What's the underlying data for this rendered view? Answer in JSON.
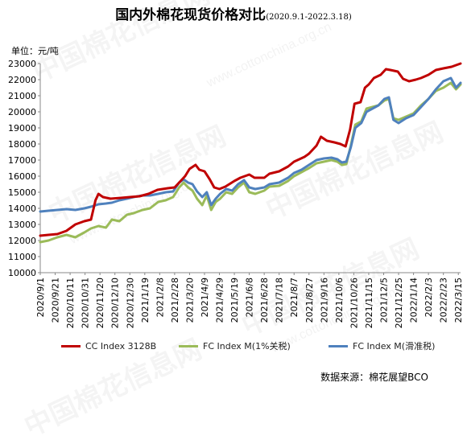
{
  "header": {
    "title": "国内外棉花现货价格对比",
    "subtitle": "(2020.9.1-2022.3.18)",
    "unit": "单位：元/吨"
  },
  "source": "数据来源：棉花展望BCO",
  "watermark": {
    "text": "中国棉花信息网",
    "url": "www.cottonchina.org.cn"
  },
  "colors": {
    "cc": "#c00000",
    "fc1": "#9bbb59",
    "fcs": "#4f81bd"
  },
  "chart_data": {
    "type": "line",
    "title": "国内外棉花现货价格对比",
    "subtitle": "(2020.9.1-2022.3.18)",
    "ylabel": "单位：元/吨",
    "ylim": [
      10000,
      23000
    ],
    "yticks": [
      10000,
      11000,
      12000,
      13000,
      14000,
      15000,
      16000,
      17000,
      18000,
      19000,
      20000,
      21000,
      22000,
      23000
    ],
    "xlim": [
      "2020-09-01",
      "2022-03-18"
    ],
    "categories": [
      "2020/9/1",
      "2020/9/21",
      "2020/10/11",
      "2020/10/31",
      "2020/11/20",
      "2020/12/10",
      "2020/12/30",
      "2021/1/19",
      "2021/2/8",
      "2021/2/28",
      "2021/3/20",
      "2021/4/9",
      "2021/4/29",
      "2021/5/19",
      "2021/6/8",
      "2021/6/28",
      "2021/7/18",
      "2021/8/7",
      "2021/8/27",
      "2021/9/16",
      "2021/10/6",
      "2021/10/26",
      "2021/11/15",
      "2021/12/5",
      "2021/12/25",
      "2022/1/14",
      "2022/2/3",
      "2022/2/23",
      "2022/3/15"
    ],
    "grid": false,
    "legend_position": "bottom",
    "series": [
      {
        "name": "CC Index 3128B",
        "color": "#c00000",
        "points": [
          [
            "2020-09-01",
            12300
          ],
          [
            "2020-09-12",
            12350
          ],
          [
            "2020-09-24",
            12400
          ],
          [
            "2020-10-06",
            12600
          ],
          [
            "2020-10-18",
            13000
          ],
          [
            "2020-10-30",
            13200
          ],
          [
            "2020-11-08",
            13300
          ],
          [
            "2020-11-14",
            14500
          ],
          [
            "2020-11-18",
            14900
          ],
          [
            "2020-11-24",
            14700
          ],
          [
            "2020-12-04",
            14600
          ],
          [
            "2020-12-18",
            14650
          ],
          [
            "2020-12-30",
            14700
          ],
          [
            "2021-01-12",
            14750
          ],
          [
            "2021-01-24",
            14900
          ],
          [
            "2021-02-05",
            15150
          ],
          [
            "2021-02-19",
            15250
          ],
          [
            "2021-02-28",
            15300
          ],
          [
            "2021-03-06",
            15600
          ],
          [
            "2021-03-14",
            16000
          ],
          [
            "2021-03-20",
            16450
          ],
          [
            "2021-03-28",
            16700
          ],
          [
            "2021-04-02",
            16400
          ],
          [
            "2021-04-09",
            16300
          ],
          [
            "2021-04-16",
            15800
          ],
          [
            "2021-04-22",
            15300
          ],
          [
            "2021-04-29",
            15200
          ],
          [
            "2021-05-07",
            15350
          ],
          [
            "2021-05-19",
            15700
          ],
          [
            "2021-05-27",
            15900
          ],
          [
            "2021-06-08",
            16100
          ],
          [
            "2021-06-15",
            15900
          ],
          [
            "2021-06-28",
            15900
          ],
          [
            "2021-07-05",
            16150
          ],
          [
            "2021-07-18",
            16300
          ],
          [
            "2021-07-30",
            16600
          ],
          [
            "2021-08-07",
            16900
          ],
          [
            "2021-08-21",
            17200
          ],
          [
            "2021-08-27",
            17400
          ],
          [
            "2021-09-06",
            17900
          ],
          [
            "2021-09-12",
            18450
          ],
          [
            "2021-09-20",
            18200
          ],
          [
            "2021-09-30",
            18100
          ],
          [
            "2021-10-08",
            18000
          ],
          [
            "2021-10-15",
            17850
          ],
          [
            "2021-10-21",
            18900
          ],
          [
            "2021-10-27",
            20500
          ],
          [
            "2021-11-04",
            20600
          ],
          [
            "2021-11-10",
            21500
          ],
          [
            "2021-11-15",
            21700
          ],
          [
            "2021-11-22",
            22100
          ],
          [
            "2021-12-01",
            22300
          ],
          [
            "2021-12-08",
            22650
          ],
          [
            "2021-12-14",
            22600
          ],
          [
            "2021-12-24",
            22500
          ],
          [
            "2021-12-31",
            22050
          ],
          [
            "2022-01-08",
            21900
          ],
          [
            "2022-01-17",
            22000
          ],
          [
            "2022-01-24",
            22100
          ],
          [
            "2022-02-03",
            22300
          ],
          [
            "2022-02-13",
            22600
          ],
          [
            "2022-02-23",
            22700
          ],
          [
            "2022-03-06",
            22800
          ],
          [
            "2022-03-12",
            22900
          ],
          [
            "2022-03-18",
            23000
          ]
        ]
      },
      {
        "name": "FC Index M(1%关税)",
        "color": "#9bbb59",
        "points": [
          [
            "2020-09-01",
            11900
          ],
          [
            "2020-09-12",
            12000
          ],
          [
            "2020-09-24",
            12200
          ],
          [
            "2020-10-06",
            12350
          ],
          [
            "2020-10-18",
            12200
          ],
          [
            "2020-10-30",
            12500
          ],
          [
            "2020-11-08",
            12750
          ],
          [
            "2020-11-18",
            12900
          ],
          [
            "2020-11-28",
            12800
          ],
          [
            "2020-12-06",
            13300
          ],
          [
            "2020-12-16",
            13200
          ],
          [
            "2020-12-26",
            13600
          ],
          [
            "2021-01-04",
            13700
          ],
          [
            "2021-01-16",
            13900
          ],
          [
            "2021-01-26",
            14000
          ],
          [
            "2021-02-06",
            14400
          ],
          [
            "2021-02-16",
            14500
          ],
          [
            "2021-02-26",
            14700
          ],
          [
            "2021-03-06",
            15300
          ],
          [
            "2021-03-12",
            15600
          ],
          [
            "2021-03-18",
            15300
          ],
          [
            "2021-03-24",
            15100
          ],
          [
            "2021-03-30",
            14600
          ],
          [
            "2021-04-06",
            14200
          ],
          [
            "2021-04-12",
            14800
          ],
          [
            "2021-04-18",
            13900
          ],
          [
            "2021-04-24",
            14400
          ],
          [
            "2021-04-30",
            14600
          ],
          [
            "2021-05-08",
            15000
          ],
          [
            "2021-05-16",
            14900
          ],
          [
            "2021-05-24",
            15300
          ],
          [
            "2021-06-01",
            15600
          ],
          [
            "2021-06-08",
            15000
          ],
          [
            "2021-06-16",
            14900
          ],
          [
            "2021-06-28",
            15100
          ],
          [
            "2021-07-05",
            15350
          ],
          [
            "2021-07-18",
            15400
          ],
          [
            "2021-07-30",
            15700
          ],
          [
            "2021-08-07",
            16000
          ],
          [
            "2021-08-17",
            16250
          ],
          [
            "2021-08-27",
            16500
          ],
          [
            "2021-09-06",
            16800
          ],
          [
            "2021-09-16",
            16900
          ],
          [
            "2021-09-26",
            17000
          ],
          [
            "2021-10-04",
            16900
          ],
          [
            "2021-10-10",
            16700
          ],
          [
            "2021-10-16",
            16750
          ],
          [
            "2021-10-22",
            17900
          ],
          [
            "2021-10-28",
            19200
          ],
          [
            "2021-11-05",
            19400
          ],
          [
            "2021-11-12",
            20200
          ],
          [
            "2021-11-20",
            20300
          ],
          [
            "2021-11-28",
            20400
          ],
          [
            "2021-12-06",
            20700
          ],
          [
            "2021-12-12",
            20800
          ],
          [
            "2021-12-18",
            19600
          ],
          [
            "2021-12-25",
            19500
          ],
          [
            "2022-01-04",
            19700
          ],
          [
            "2022-01-14",
            19900
          ],
          [
            "2022-01-24",
            20400
          ],
          [
            "2022-02-03",
            20800
          ],
          [
            "2022-02-13",
            21300
          ],
          [
            "2022-02-23",
            21500
          ],
          [
            "2022-03-05",
            21800
          ],
          [
            "2022-03-12",
            21400
          ],
          [
            "2022-03-18",
            21700
          ]
        ]
      },
      {
        "name": "FC Index M(滑准税)",
        "color": "#4f81bd",
        "points": [
          [
            "2020-09-01",
            13800
          ],
          [
            "2020-09-12",
            13850
          ],
          [
            "2020-09-24",
            13900
          ],
          [
            "2020-10-06",
            13950
          ],
          [
            "2020-10-18",
            13900
          ],
          [
            "2020-10-30",
            14000
          ],
          [
            "2020-11-08",
            14100
          ],
          [
            "2020-11-18",
            14250
          ],
          [
            "2020-11-28",
            14300
          ],
          [
            "2020-12-06",
            14350
          ],
          [
            "2020-12-16",
            14500
          ],
          [
            "2020-12-26",
            14600
          ],
          [
            "2021-01-04",
            14700
          ],
          [
            "2021-01-16",
            14800
          ],
          [
            "2021-01-26",
            14800
          ],
          [
            "2021-02-06",
            14900
          ],
          [
            "2021-02-16",
            15000
          ],
          [
            "2021-02-26",
            15050
          ],
          [
            "2021-03-06",
            15600
          ],
          [
            "2021-03-12",
            15800
          ],
          [
            "2021-03-18",
            15600
          ],
          [
            "2021-03-24",
            15500
          ],
          [
            "2021-03-30",
            15050
          ],
          [
            "2021-04-06",
            14700
          ],
          [
            "2021-04-12",
            15000
          ],
          [
            "2021-04-18",
            14200
          ],
          [
            "2021-04-24",
            14600
          ],
          [
            "2021-04-30",
            14900
          ],
          [
            "2021-05-08",
            15200
          ],
          [
            "2021-05-16",
            15100
          ],
          [
            "2021-05-24",
            15500
          ],
          [
            "2021-06-01",
            15750
          ],
          [
            "2021-06-08",
            15300
          ],
          [
            "2021-06-16",
            15200
          ],
          [
            "2021-06-28",
            15300
          ],
          [
            "2021-07-05",
            15500
          ],
          [
            "2021-07-18",
            15600
          ],
          [
            "2021-07-30",
            15900
          ],
          [
            "2021-08-07",
            16200
          ],
          [
            "2021-08-17",
            16400
          ],
          [
            "2021-08-27",
            16700
          ],
          [
            "2021-09-06",
            17000
          ],
          [
            "2021-09-16",
            17100
          ],
          [
            "2021-09-26",
            17150
          ],
          [
            "2021-10-04",
            17050
          ],
          [
            "2021-10-10",
            16850
          ],
          [
            "2021-10-16",
            16900
          ],
          [
            "2021-10-22",
            17800
          ],
          [
            "2021-10-28",
            19000
          ],
          [
            "2021-11-05",
            19300
          ],
          [
            "2021-11-12",
            20000
          ],
          [
            "2021-11-20",
            20200
          ],
          [
            "2021-11-28",
            20400
          ],
          [
            "2021-12-06",
            20800
          ],
          [
            "2021-12-12",
            20900
          ],
          [
            "2021-12-18",
            19500
          ],
          [
            "2021-12-25",
            19300
          ],
          [
            "2022-01-04",
            19600
          ],
          [
            "2022-01-14",
            19800
          ],
          [
            "2022-01-24",
            20300
          ],
          [
            "2022-02-03",
            20800
          ],
          [
            "2022-02-13",
            21400
          ],
          [
            "2022-02-23",
            21900
          ],
          [
            "2022-03-05",
            22100
          ],
          [
            "2022-03-12",
            21500
          ],
          [
            "2022-03-18",
            21800
          ]
        ]
      }
    ]
  }
}
